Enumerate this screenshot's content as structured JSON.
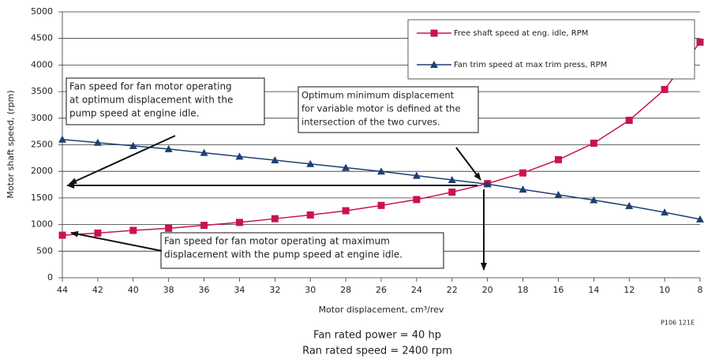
{
  "chart_data": {
    "type": "line",
    "y_label": "Motor shaft speed, (rpm)",
    "x_label": "Motor displacement, cm³/rev",
    "x": [
      44,
      42,
      40,
      38,
      36,
      34,
      32,
      30,
      28,
      26,
      24,
      22,
      20,
      18,
      16,
      14,
      12,
      10,
      8
    ],
    "xlim": [
      44,
      8
    ],
    "xticks": [
      44,
      42,
      40,
      38,
      36,
      34,
      32,
      30,
      28,
      26,
      24,
      22,
      20,
      18,
      16,
      14,
      12,
      10,
      8
    ],
    "ylim": [
      0,
      5000
    ],
    "yticks": [
      0,
      500,
      1000,
      1500,
      2000,
      2500,
      3000,
      3500,
      4000,
      4500,
      5000
    ],
    "grid": true,
    "series": [
      {
        "name": "Free shaft speed at eng. idle, RPM",
        "color": "#c8144b",
        "marker": "square",
        "values": [
          800,
          840,
          890,
          930,
          985,
          1040,
          1110,
          1180,
          1260,
          1360,
          1470,
          1610,
          1770,
          1970,
          2220,
          2530,
          2960,
          3540,
          4430
        ]
      },
      {
        "name": "Fan trim speed at max trim press, RPM",
        "color": "#1f3f73",
        "marker": "triangle",
        "values": [
          2600,
          2540,
          2480,
          2420,
          2350,
          2280,
          2210,
          2140,
          2070,
          2000,
          1920,
          1840,
          1760,
          1660,
          1560,
          1460,
          1350,
          1230,
          1100
        ]
      }
    ],
    "annotations": [
      {
        "lines": [
          "Fan speed for fan motor operating",
          "at optimum displacement with the",
          "pump speed at engine idle."
        ]
      },
      {
        "lines": [
          "Optimum minimum displacement",
          "for variable  motor is defined at the",
          "intersection of the two curves."
        ]
      },
      {
        "lines": [
          "Fan speed for fan motor operating at maximum",
          "displacement with the pump speed at engine idle."
        ]
      }
    ],
    "figure_code": "P106 121E",
    "notes": [
      "Fan rated power = 40 hp",
      "Ran rated speed = 2400 rpm"
    ]
  }
}
